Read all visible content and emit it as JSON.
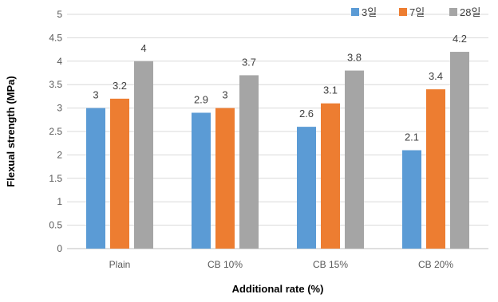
{
  "chart_data": {
    "type": "bar",
    "title": "",
    "xlabel": "Additional rate (%)",
    "ylabel": "Flexual strength (MPa)",
    "categories": [
      "Plain",
      "CB 10%",
      "CB 15%",
      "CB 20%"
    ],
    "series": [
      {
        "name": "3일",
        "values": [
          3,
          2.9,
          2.6,
          2.1
        ],
        "color": "#5B9BD5"
      },
      {
        "name": "7일",
        "values": [
          3.2,
          3,
          3.1,
          3.4
        ],
        "color": "#ED7D31"
      },
      {
        "name": "28일",
        "values": [
          4,
          3.7,
          3.8,
          4.2
        ],
        "color": "#A5A5A5"
      }
    ],
    "data_labels": [
      [
        "3",
        "3.2",
        "4"
      ],
      [
        "2.9",
        "3",
        "3.7"
      ],
      [
        "2.6",
        "3.1",
        "3.8"
      ],
      [
        "2.1",
        "3.4",
        "4.2"
      ]
    ],
    "ylim": [
      0,
      5
    ],
    "yticks": [
      "0",
      "0.5",
      "1",
      "1.5",
      "2",
      "2.5",
      "3",
      "3.5",
      "4",
      "4.5",
      "5"
    ],
    "grid": true,
    "legend_position": "top-right"
  }
}
